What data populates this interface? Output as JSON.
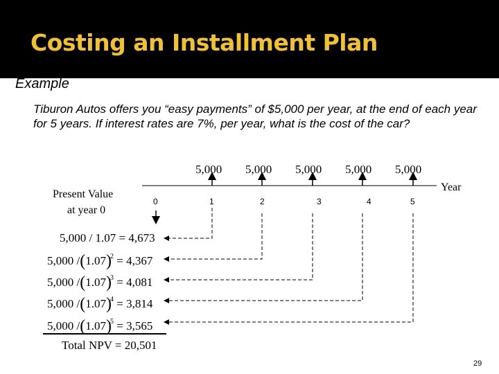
{
  "title": "Costing an Installment Plan",
  "subtitle": "Example",
  "body": "Tiburon Autos offers you “easy payments” of $5,000 per year, at the end of each year for 5 years. If interest rates are 7%, per year, what is the cost of the car?",
  "timeline": {
    "payments": [
      "5,000",
      "5,000",
      "5,000",
      "5,000",
      "5,000"
    ],
    "years": [
      "0",
      "1",
      "2",
      "3",
      "4",
      "5"
    ],
    "axis_label": "Year",
    "pv_label_line1": "Present Value",
    "pv_label_line2": "at year 0"
  },
  "calculations": [
    {
      "base": "5,000",
      "divisor": "1.07",
      "exponent": "",
      "result": "4,673"
    },
    {
      "base": "5,000",
      "divisor": "1.07",
      "exponent": "2",
      "result": "4,367"
    },
    {
      "base": "5,000",
      "divisor": "1.07",
      "exponent": "3",
      "result": "4,081"
    },
    {
      "base": "5,000",
      "divisor": "1.07",
      "exponent": "4",
      "result": "3,814"
    },
    {
      "base": "5,000",
      "divisor": "1.07",
      "exponent": "5",
      "result": "3,565"
    }
  ],
  "total": {
    "label": "Total NPV",
    "value": "20,501"
  },
  "page_number": "29",
  "colors": {
    "title": "#f2c12e",
    "title_bar": "#000000"
  }
}
